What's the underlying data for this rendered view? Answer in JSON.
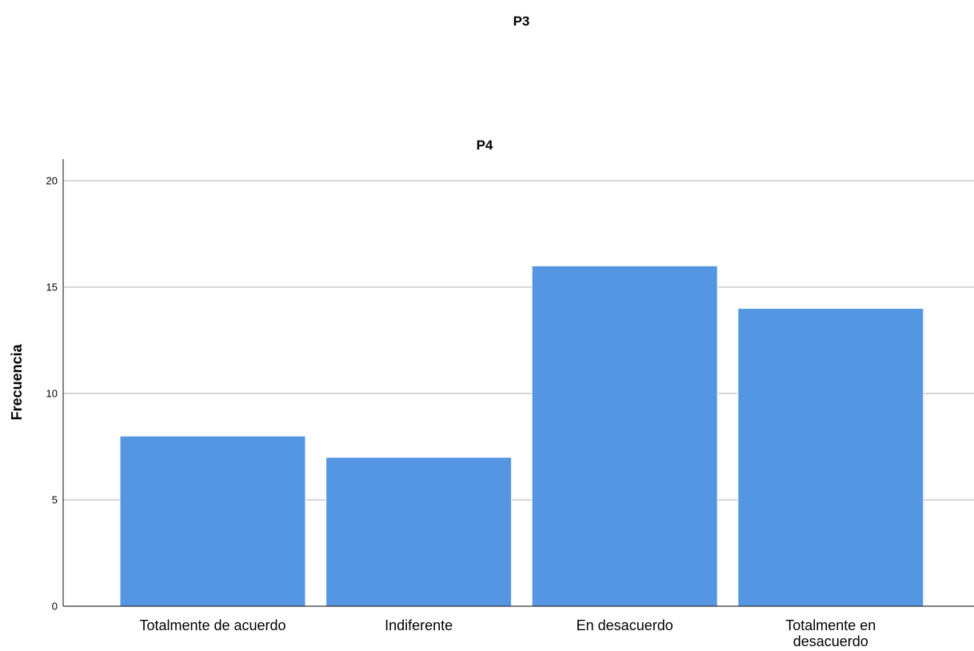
{
  "outer_title": "P3",
  "chart_data": {
    "type": "bar",
    "title": "P4",
    "xlabel": "",
    "ylabel": "Frecuencia",
    "categories": [
      "Totalmente de acuerdo",
      "Indiferente",
      "En desacuerdo",
      "Totalmente en desacuerdo"
    ],
    "category_lines": [
      [
        "Totalmente de acuerdo"
      ],
      [
        "Indiferente"
      ],
      [
        "En desacuerdo"
      ],
      [
        "Totalmente en",
        "desacuerdo"
      ]
    ],
    "values": [
      8,
      7,
      16,
      14
    ],
    "ylim": [
      0,
      21
    ],
    "yticks": [
      0,
      5,
      10,
      15,
      20
    ],
    "grid": true,
    "bar_color": "#5596e3",
    "grid_color": "#c8c8c8"
  }
}
